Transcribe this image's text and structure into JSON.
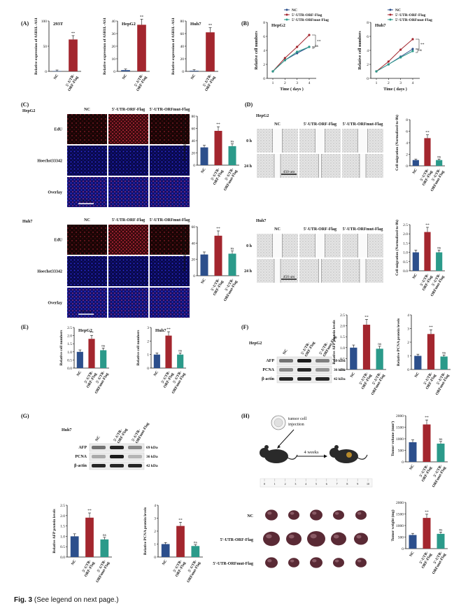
{
  "caption": {
    "label": "Fig. 3",
    "text": "(See legend on next page.)"
  },
  "colors": {
    "nc": "#2c4f8c",
    "orf": "#a3262e",
    "mut": "#2b9a8a",
    "gray": "#999999"
  },
  "panels": {
    "A": {
      "letter": "(A)",
      "charts": [
        {
          "title": "293T",
          "ylabel": "Relative expression of ASH1L-AS1",
          "yticks": [
            "0",
            "50",
            "100"
          ],
          "categories": [
            "NC",
            "5'-UTR-ORF-Flag"
          ],
          "values": [
            1,
            95
          ],
          "sig": [
            "",
            "**"
          ],
          "ymax": 150
        },
        {
          "title": "HepG2",
          "ylabel": "Relative expression of ASH1L-AS1",
          "yticks": [
            "0",
            "10",
            "20",
            "30",
            "40"
          ],
          "categories": [
            "NC",
            "5'-UTR-ORF-Flag"
          ],
          "values": [
            1,
            37
          ],
          "sig": [
            "",
            "**"
          ],
          "ymax": 40
        },
        {
          "title": "Huh7",
          "ylabel": "Relative expression of ASH1L-AS1",
          "yticks": [
            "0",
            "20",
            "40",
            "60",
            "80"
          ],
          "categories": [
            "NC",
            "5'-UTR-ORF-Flag"
          ],
          "values": [
            1,
            62
          ],
          "sig": [
            "",
            "**"
          ],
          "ymax": 80
        }
      ]
    },
    "B": {
      "letter": "(B)",
      "legend": [
        "NC",
        "5'-UTR-ORF-Flag",
        "5'-UTR-ORFmut-Flag"
      ],
      "xlabel": "Time ( days )",
      "ylabel": "Relative cell numbers",
      "charts": [
        {
          "title": "HepG2",
          "x": [
            1,
            2,
            3,
            4
          ],
          "yticks": [
            "0",
            "2",
            "4",
            "6",
            "8"
          ],
          "ymax": 8,
          "series": [
            {
              "values": [
                1,
                2.6,
                3.6,
                4.5
              ]
            },
            {
              "values": [
                1,
                2.9,
                4.5,
                6.2
              ]
            },
            {
              "values": [
                1,
                2.6,
                3.8,
                4.5
              ]
            }
          ],
          "marks": [
            "**",
            "ns"
          ]
        },
        {
          "title": "Huh7",
          "x": [
            1,
            2,
            3,
            4
          ],
          "yticks": [
            "0",
            "2",
            "4",
            "6",
            "8"
          ],
          "ymax": 8,
          "series": [
            {
              "values": [
                1,
                2.0,
                3.1,
                4.2
              ]
            },
            {
              "values": [
                1,
                2.4,
                4.1,
                5.6
              ]
            },
            {
              "values": [
                1,
                2.0,
                3.0,
                3.9
              ]
            }
          ],
          "marks": [
            "**",
            "ns"
          ]
        }
      ]
    },
    "C": {
      "letter": "(C)",
      "columns": [
        "NC",
        "5'-UTR-ORF-Flag",
        "5'-UTR-ORFmut-Flag"
      ],
      "rows": [
        "EdU",
        "Hoechst33342",
        "Overlay"
      ],
      "scale": "200 um",
      "groups": [
        {
          "cell": "HepG2",
          "ylabel": "Percentage of EdU+cells",
          "yticks": [
            "0",
            "20",
            "40",
            "60",
            "80"
          ],
          "ymax": 80,
          "values": [
            29,
            56,
            31
          ],
          "sig": [
            "",
            "**",
            "ns"
          ]
        },
        {
          "cell": "Huh7",
          "ylabel": "Percentage of EdU+cells",
          "yticks": [
            "0",
            "20",
            "40",
            "60"
          ],
          "ymax": 60,
          "values": [
            26,
            49,
            27
          ],
          "sig": [
            "",
            "**",
            "ns"
          ]
        }
      ],
      "categories": [
        "NC",
        "5'-UTR-ORF-Flag",
        "5'-UTR-ORFmut-Flag"
      ]
    },
    "D": {
      "letter": "(D)",
      "columns": [
        "NC",
        "5'-UTR-ORF-Flag",
        "5'-UTR-ORFmut-Flag"
      ],
      "rows": [
        "0 h",
        "24 h"
      ],
      "scale": "450 um",
      "groups": [
        {
          "cell": "HepG2",
          "ylabel": "Cell migration (Normalized to 0h)",
          "yticks": [
            "0",
            "2",
            "4",
            "6",
            "8"
          ],
          "ymax": 8,
          "values": [
            1,
            4.8,
            1.0
          ],
          "sig": [
            "",
            "**",
            "ns"
          ]
        },
        {
          "cell": "Huh7",
          "ylabel": "Cell migration (Normalized to 0h)",
          "yticks": [
            "0.0",
            "0.5",
            "1.0",
            "1.5",
            "2.0",
            "2.5"
          ],
          "ymax": 2.5,
          "values": [
            1.0,
            2.1,
            1.0
          ],
          "sig": [
            "",
            "**",
            "ns"
          ]
        }
      ],
      "categories": [
        "NC",
        "5'-UTR-ORF-Flag",
        "5'-UTR-ORFmut-Flag"
      ]
    },
    "E": {
      "letter": "(E)",
      "ylabel": "Relative cell numbers",
      "categories": [
        "NC",
        "5'-UTR-ORF-Flag",
        "5'-UTR-ORFmut-Flag"
      ],
      "charts": [
        {
          "title": "HepG2",
          "yticks": [
            "0.0",
            "0.5",
            "1.0",
            "1.5",
            "2.0",
            "2.5"
          ],
          "ymax": 2.5,
          "values": [
            1.0,
            1.8,
            1.1
          ],
          "sig": [
            "",
            "**",
            "ns"
          ]
        },
        {
          "title": "Huh7",
          "yticks": [
            "0",
            "1",
            "2",
            "3"
          ],
          "ymax": 3,
          "values": [
            1.0,
            2.4,
            1.0
          ],
          "sig": [
            "",
            "**",
            "ns"
          ]
        }
      ]
    },
    "F": {
      "letter": "(F)",
      "cell": "HepG2",
      "lanes": [
        "NC",
        "5'-UTR-ORF-Flag",
        "5'-UTR-ORFmut-Flag"
      ],
      "bands": [
        {
          "name": "AFP",
          "kda": "69 kDa"
        },
        {
          "name": "PCNA",
          "kda": "36 kDa"
        },
        {
          "name": "β-actin",
          "kda": "42 kDa"
        }
      ],
      "categories": [
        "NC",
        "5'-UTR-ORF-Flag",
        "5'-UTR-ORFmut-Flag"
      ],
      "charts": [
        {
          "ylabel": "Relative AFP protein levels",
          "yticks": [
            "0.0",
            "0.5",
            "1.0",
            "1.5",
            "2.0",
            "2.5"
          ],
          "ymax": 2.5,
          "values": [
            1.0,
            2.05,
            0.95
          ],
          "sig": [
            "",
            "**",
            "ns"
          ]
        },
        {
          "ylabel": "Relative PCNA protein levels",
          "yticks": [
            "0",
            "1",
            "2",
            "3",
            "4"
          ],
          "ymax": 4,
          "values": [
            1.0,
            2.6,
            0.95
          ],
          "sig": [
            "",
            "**",
            "ns"
          ]
        }
      ]
    },
    "G": {
      "letter": "(G)",
      "cell": "Huh7",
      "lanes": [
        "NC",
        "5'-UTR-ORF-Flag",
        "5'-UTR-ORFmut-Flag"
      ],
      "bands": [
        {
          "name": "AFP",
          "kda": "69 kDa"
        },
        {
          "name": "PCNA",
          "kda": "36 kDa"
        },
        {
          "name": "β-actin",
          "kda": "42 kDa"
        }
      ],
      "categories": [
        "NC",
        "5'-UTR-ORF-Flag",
        "5'-UTR-ORFmut-Flag"
      ],
      "charts": [
        {
          "ylabel": "Relative AFP protein levels",
          "yticks": [
            "0.0",
            "0.5",
            "1.0",
            "1.5",
            "2.0",
            "2.5"
          ],
          "ymax": 2.5,
          "values": [
            1.0,
            1.9,
            0.85
          ],
          "sig": [
            "",
            "**",
            "ns"
          ]
        },
        {
          "ylabel": "Relative PCNA protein levels",
          "yticks": [
            "0",
            "1",
            "2",
            "3",
            "4"
          ],
          "ymax": 4,
          "values": [
            1.0,
            2.4,
            0.85
          ],
          "sig": [
            "",
            "**",
            "ns"
          ]
        }
      ]
    },
    "H": {
      "letter": "(H)",
      "injection": "tumor cell injection",
      "weeks": "4 weeks",
      "rows": [
        "NC",
        "5'-UTR-ORF-Flag",
        "5'-UTR-ORFmut-Flag"
      ],
      "ruler": [
        "0",
        "1",
        "2",
        "3",
        "4",
        "5",
        "6",
        "7",
        "8",
        "9",
        "10"
      ],
      "categories": [
        "NC",
        "5'-UTR-ORF-Flag",
        "5'-UTR-ORFmut-Flag"
      ],
      "charts": [
        {
          "ylabel": "Tumor volume (mm³)",
          "yticks": [
            "0",
            "500",
            "1000",
            "1500",
            "2000"
          ],
          "ymax": 2000,
          "values": [
            850,
            1620,
            790
          ],
          "sig": [
            "",
            "**",
            "ns"
          ]
        },
        {
          "ylabel": "Tumor weight (mg)",
          "yticks": [
            "0",
            "500",
            "1000",
            "1500",
            "2000"
          ],
          "ymax": 2000,
          "values": [
            590,
            1330,
            640
          ],
          "sig": [
            "",
            "**",
            "ns"
          ]
        }
      ]
    }
  }
}
